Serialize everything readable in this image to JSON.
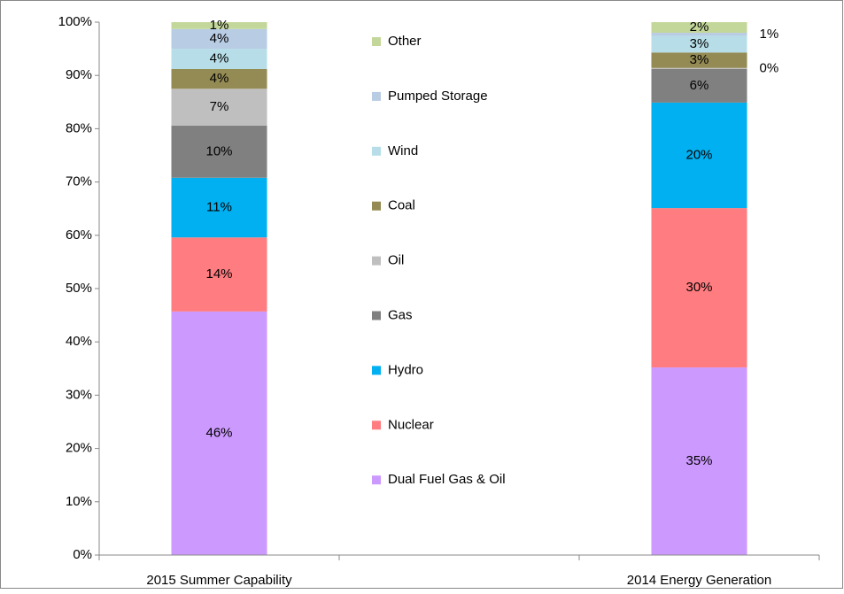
{
  "chart_data": {
    "type": "stacked_bar",
    "categories": [
      "2015 Summer Capability",
      null,
      "2014 Energy Generation"
    ],
    "series": [
      {
        "name": "Dual Fuel Gas & Oil",
        "color": "#cc99ff",
        "values": [
          45.7,
          null,
          35.2
        ],
        "value_labels": [
          "46%",
          null,
          "35%"
        ]
      },
      {
        "name": "Nuclear",
        "color": "#ff7c80",
        "values": [
          13.9,
          null,
          29.9
        ],
        "value_labels": [
          "14%",
          null,
          "30%"
        ]
      },
      {
        "name": "Hydro",
        "color": "#00b0f0",
        "values": [
          11.2,
          null,
          19.8
        ],
        "value_labels": [
          "11%",
          null,
          "20%"
        ]
      },
      {
        "name": "Gas",
        "color": "#808080",
        "values": [
          9.8,
          null,
          6.3
        ],
        "value_labels": [
          "10%",
          null,
          "6%"
        ]
      },
      {
        "name": "Oil",
        "color": "#bfbfbf",
        "values": [
          6.9,
          null,
          0.2
        ],
        "value_labels": [
          "7%",
          null,
          "0%"
        ]
      },
      {
        "name": "Coal",
        "color": "#948a54",
        "values": [
          3.7,
          null,
          2.9
        ],
        "value_labels": [
          "4%",
          null,
          "3%"
        ]
      },
      {
        "name": "Wind",
        "color": "#b7dee8",
        "values": [
          3.8,
          null,
          3.1
        ],
        "value_labels": [
          "4%",
          null,
          "3%"
        ]
      },
      {
        "name": "Pumped Storage",
        "color": "#b8cce4",
        "values": [
          3.7,
          null,
          0.6
        ],
        "value_labels": [
          "4%",
          null,
          "1%"
        ]
      },
      {
        "name": "Other",
        "color": "#c4d79b",
        "values": [
          1.3,
          null,
          2.0
        ],
        "value_labels": [
          "1%",
          null,
          "2%"
        ]
      }
    ],
    "ylim": [
      0,
      100
    ],
    "yticks": [
      {
        "value": 0,
        "label": "0%"
      },
      {
        "value": 10,
        "label": "10%"
      },
      {
        "value": 20,
        "label": "20%"
      },
      {
        "value": 30,
        "label": "30%"
      },
      {
        "value": 40,
        "label": "40%"
      },
      {
        "value": 50,
        "label": "50%"
      },
      {
        "value": 60,
        "label": "60%"
      },
      {
        "value": 70,
        "label": "70%"
      },
      {
        "value": 80,
        "label": "80%"
      },
      {
        "value": 90,
        "label": "90%"
      },
      {
        "value": 100,
        "label": "100%"
      }
    ],
    "legend": "center"
  }
}
